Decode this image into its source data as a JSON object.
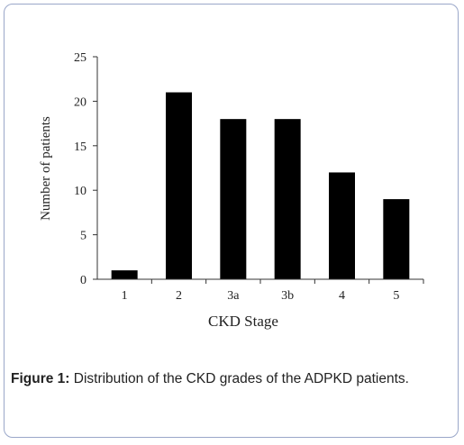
{
  "chart_data": {
    "type": "bar",
    "categories": [
      "1",
      "2",
      "3a",
      "3b",
      "4",
      "5"
    ],
    "values": [
      1,
      21,
      18,
      18,
      12,
      9
    ],
    "xlabel": "CKD Stage",
    "ylabel": "Number of patients",
    "ylim": [
      0,
      25
    ],
    "yticks": [
      0,
      5,
      10,
      15,
      20,
      25
    ],
    "grid": false,
    "legend": "none",
    "bar_color": "#000000"
  },
  "caption": {
    "label": "Figure 1:",
    "text": " Distribution of the CKD grades of the ADPKD patients."
  }
}
